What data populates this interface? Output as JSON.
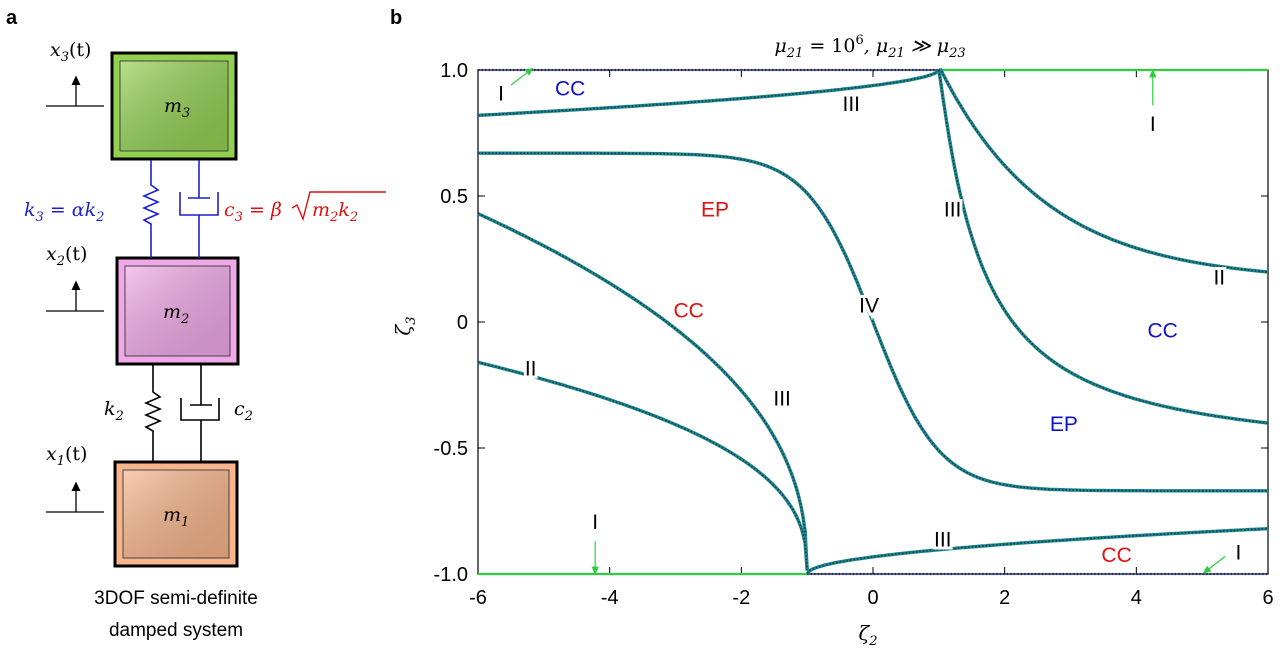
{
  "panel_a": {
    "label": "a",
    "caption_line1": "3DOF semi-definite",
    "caption_line2": "damped system",
    "masses": [
      {
        "sym": "m",
        "sub": "3",
        "disp_sym": "x",
        "disp_sub": "3",
        "disp_arg": "(t)",
        "color": "#92d050"
      },
      {
        "sym": "m",
        "sub": "2",
        "disp_sym": "x",
        "disp_sub": "2",
        "disp_arg": "(t)",
        "color": "#f0a8e8"
      },
      {
        "sym": "m",
        "sub": "1",
        "disp_sym": "x",
        "disp_sub": "1",
        "disp_arg": "(t)",
        "color": "#f8b48a"
      }
    ],
    "upper_spring": {
      "lhs": "k",
      "lhs_sub": "3",
      "rhs": " = αk",
      "rhs_sub": "2",
      "color": "#1f1fd0"
    },
    "upper_damper": {
      "lhs": "c",
      "lhs_sub": "3",
      "mid": " = β",
      "root": "m",
      "root_sub1": "2",
      "root2": "k",
      "root_sub2": "2",
      "color": "#e01010"
    },
    "lower_spring": {
      "sym": "k",
      "sub": "2"
    },
    "lower_damper": {
      "sym": "c",
      "sub": "2"
    }
  },
  "panel_b": {
    "label": "b",
    "title_main": "μ",
    "title_sub1": "21",
    "title_eq": " = 10",
    "title_sup": "6",
    "title_sep": ", μ",
    "title_sub2": "21",
    "title_gg": " ≫ μ",
    "title_sub3": "23",
    "xlabel_sym": "ζ",
    "xlabel_sub": "2",
    "ylabel_sym": "ζ",
    "ylabel_sub": "3"
  },
  "chart_data": {
    "type": "line",
    "xlim": [
      -6,
      6
    ],
    "ylim": [
      -1.0,
      1.0
    ],
    "x_ticks": [
      -6,
      -4,
      -2,
      0,
      2,
      4,
      6
    ],
    "x_tick_labels": [
      "-6",
      "-4",
      "-2",
      "0",
      "2",
      "4",
      "6"
    ],
    "y_ticks": [
      1.0,
      0.5,
      0,
      -0.5,
      -1.0
    ],
    "y_tick_labels": [
      "1.0",
      "0.5",
      "0",
      "-0.5",
      "-1.0"
    ],
    "grid": false,
    "boundary_color": "#2ecc40",
    "curve_color": "#1a8a7a",
    "curve_dot_color": "#1a2a8a",
    "region_labels": [
      {
        "text": "CC",
        "x": -4.6,
        "y": 0.93,
        "color": "#1010d0"
      },
      {
        "text": "EP",
        "x": -2.4,
        "y": 0.45,
        "color": "#e01010"
      },
      {
        "text": "CC",
        "x": -2.8,
        "y": 0.05,
        "color": "#e01010"
      },
      {
        "text": "CC",
        "x": 4.4,
        "y": -0.03,
        "color": "#1010d0"
      },
      {
        "text": "EP",
        "x": 2.9,
        "y": -0.4,
        "color": "#1010d0"
      },
      {
        "text": "CC",
        "x": 3.7,
        "y": -0.92,
        "color": "#e01010"
      }
    ],
    "curve_labels": [
      {
        "text": "I",
        "x": -5.65,
        "y": 0.91
      },
      {
        "text": "III",
        "x": -0.33,
        "y": 0.87
      },
      {
        "text": "III",
        "x": 1.21,
        "y": 0.45
      },
      {
        "text": "II",
        "x": 5.26,
        "y": 0.18
      },
      {
        "text": "IV",
        "x": -0.06,
        "y": 0.07
      },
      {
        "text": "II",
        "x": -5.2,
        "y": -0.18
      },
      {
        "text": "III",
        "x": -1.38,
        "y": -0.3
      },
      {
        "text": "I",
        "x": 4.25,
        "y": 0.79
      },
      {
        "text": "I",
        "x": -4.22,
        "y": -0.79
      },
      {
        "text": "III",
        "x": 1.06,
        "y": -0.86
      },
      {
        "text": "I",
        "x": 5.55,
        "y": -0.91
      }
    ],
    "arrows": [
      {
        "from": [
          -5.5,
          0.94
        ],
        "to": [
          -5.2,
          1.0
        ]
      },
      {
        "from": [
          4.25,
          0.86
        ],
        "to": [
          4.25,
          0.99
        ]
      },
      {
        "from": [
          -4.22,
          -0.87
        ],
        "to": [
          -4.22,
          -0.99
        ]
      },
      {
        "from": [
          5.35,
          -0.93
        ],
        "to": [
          5.05,
          -0.99
        ]
      }
    ]
  }
}
